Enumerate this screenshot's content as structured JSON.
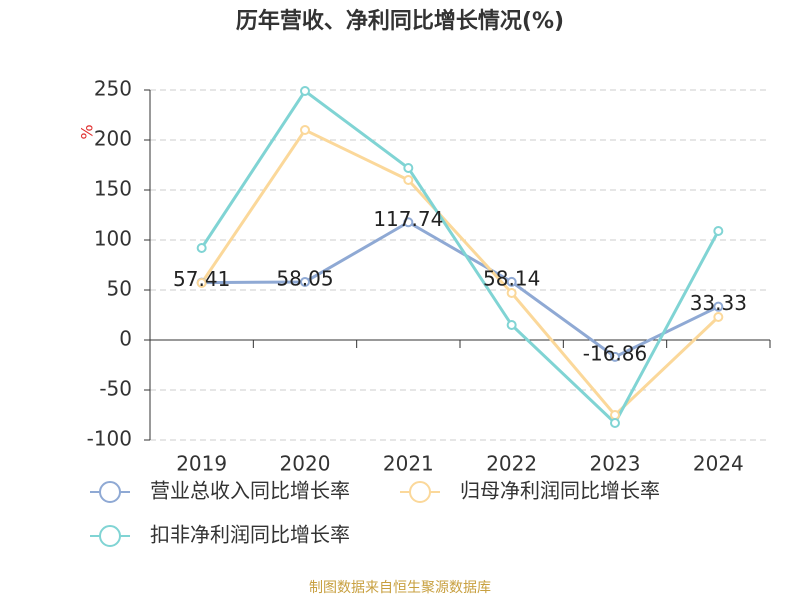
{
  "chart_data": {
    "type": "line",
    "title": "历年营收、净利同比增长情况(%)",
    "y_label": "%",
    "source": "制图数据来自恒生聚源数据库",
    "categories": [
      "2019",
      "2020",
      "2021",
      "2022",
      "2023",
      "2024"
    ],
    "series": [
      {
        "name": "营业总收入同比增长率",
        "color": "#8fa9d4",
        "values": [
          57.41,
          58.05,
          117.74,
          58.14,
          -16.86,
          33.33
        ],
        "show_labels": true
      },
      {
        "name": "归母净利润同比增长率",
        "color": "#fbd89a",
        "values": [
          57,
          210,
          160,
          47,
          -75,
          23
        ],
        "show_labels": false
      },
      {
        "name": "扣非净利润同比增长率",
        "color": "#80d4d4",
        "values": [
          92,
          249,
          172,
          15,
          -83,
          109
        ],
        "show_labels": false
      }
    ],
    "ylim": [
      -100,
      250
    ],
    "yticks": [
      -100,
      -50,
      0,
      50,
      100,
      150,
      200,
      250
    ],
    "grid": true
  }
}
